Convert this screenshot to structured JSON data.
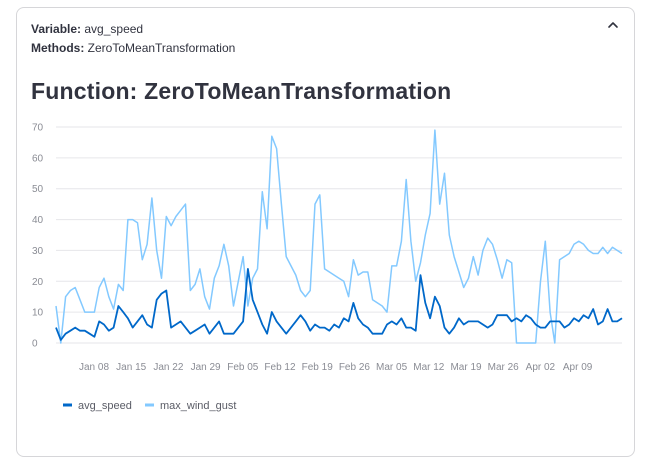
{
  "variable": {
    "label": "Variable:",
    "value": "avg_speed"
  },
  "methods": {
    "label": "Methods:",
    "value": "ZeroToMeanTransformation"
  },
  "function_title": "Function: ZeroToMeanTransformation",
  "icons": {
    "collapse": "chevron-up-icon"
  },
  "colors": {
    "avg_speed": "#0068c9",
    "max_wind_gust": "#83c9ff",
    "grid": "#e6e6ea"
  },
  "chart_data": {
    "type": "line",
    "title": "",
    "xlabel": "",
    "ylabel": "",
    "ylim": [
      0,
      70
    ],
    "yticks": [
      "0",
      "10",
      "20",
      "30",
      "40",
      "50",
      "60",
      "70"
    ],
    "xticks": [
      "Jan 08",
      "Jan 15",
      "Jan 22",
      "Jan 29",
      "Feb 05",
      "Feb 12",
      "Feb 19",
      "Feb 26",
      "Mar 05",
      "Mar 12",
      "Mar 19",
      "Mar 26",
      "Apr 02",
      "Apr 09"
    ],
    "x_range_days": [
      0,
      98
    ],
    "grid": true,
    "legend": {
      "position": "bottom-left"
    },
    "series": [
      {
        "name": "avg_speed",
        "values": [
          5,
          1,
          3,
          4,
          5,
          4,
          4,
          3,
          2,
          7,
          6,
          4,
          5,
          12,
          10,
          8,
          5,
          7,
          9,
          6,
          5,
          14,
          16,
          17,
          5,
          6,
          7,
          5,
          3,
          4,
          5,
          6,
          3,
          5,
          7,
          3,
          3,
          3,
          5,
          7,
          24,
          14,
          10,
          6,
          3,
          10,
          7,
          5,
          3,
          5,
          7,
          9,
          7,
          4,
          6,
          5,
          5,
          4,
          6,
          5,
          8,
          7,
          13,
          8,
          6,
          5,
          3,
          3,
          3,
          6,
          7,
          6,
          8,
          5,
          5,
          4,
          22,
          13,
          8,
          15,
          12,
          5,
          3,
          5,
          8,
          6,
          7,
          7,
          7,
          6,
          5,
          6,
          9,
          9,
          9,
          7,
          8,
          7,
          9,
          8,
          6,
          5,
          5,
          7,
          7,
          7,
          5,
          6,
          8,
          7,
          9,
          8,
          11,
          6,
          7,
          11,
          7,
          7,
          8
        ]
      },
      {
        "name": "max_wind_gust",
        "values": [
          12,
          0,
          15,
          17,
          18,
          14,
          10,
          10,
          10,
          18,
          21,
          15,
          11,
          19,
          17,
          40,
          40,
          39,
          27,
          32,
          47,
          30,
          21,
          41,
          38,
          41,
          43,
          45,
          17,
          19,
          24,
          15,
          11,
          21,
          25,
          32,
          25,
          12,
          20,
          28,
          12,
          21,
          24,
          49,
          37,
          67,
          63,
          45,
          28,
          25,
          22,
          17,
          15,
          17,
          45,
          48,
          24,
          23,
          22,
          21,
          20,
          15,
          27,
          22,
          23,
          23,
          14,
          13,
          12,
          10,
          25,
          25,
          33,
          53,
          33,
          20,
          26,
          35,
          42,
          69,
          45,
          55,
          35,
          28,
          23,
          18,
          21,
          28,
          22,
          30,
          34,
          32,
          27,
          21,
          27,
          26,
          0,
          0,
          0,
          0,
          0,
          20,
          33,
          10,
          0,
          27,
          28,
          29,
          32,
          33,
          32,
          30,
          29,
          29,
          31,
          29,
          31,
          30,
          29
        ]
      }
    ]
  }
}
